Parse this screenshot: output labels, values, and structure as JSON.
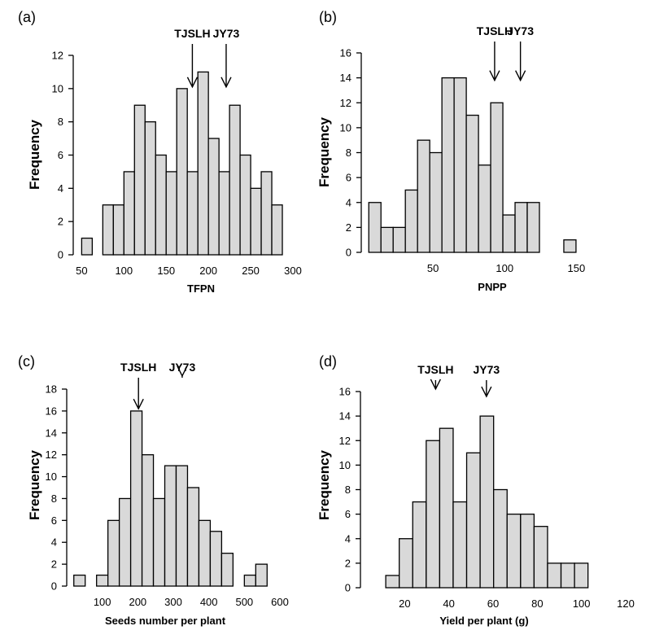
{
  "colors": {
    "bar_fill": "#d9d9d9",
    "stroke": "#000000",
    "background": "#ffffff"
  },
  "chart_data": [
    {
      "type": "bar",
      "panel_label": "(a)",
      "xlabel": "TFPN",
      "ylabel": "Frequency",
      "xlim": [
        40,
        300
      ],
      "ylim": [
        0,
        12
      ],
      "xticks": [
        50,
        100,
        150,
        200,
        250,
        300
      ],
      "yticks": [
        0,
        2,
        4,
        6,
        8,
        10,
        12
      ],
      "bin_width": 12.5,
      "bins": [
        {
          "x": 56.25,
          "value": 1
        },
        {
          "x": 81.25,
          "value": 3
        },
        {
          "x": 93.75,
          "value": 3
        },
        {
          "x": 106.25,
          "value": 5
        },
        {
          "x": 118.75,
          "value": 9
        },
        {
          "x": 131.25,
          "value": 8
        },
        {
          "x": 143.75,
          "value": 6
        },
        {
          "x": 156.25,
          "value": 5
        },
        {
          "x": 168.75,
          "value": 10
        },
        {
          "x": 181.25,
          "value": 5
        },
        {
          "x": 193.75,
          "value": 11
        },
        {
          "x": 206.25,
          "value": 7
        },
        {
          "x": 218.75,
          "value": 5
        },
        {
          "x": 231.25,
          "value": 9
        },
        {
          "x": 243.75,
          "value": 6
        },
        {
          "x": 256.25,
          "value": 4
        },
        {
          "x": 268.75,
          "value": 5
        },
        {
          "x": 281.25,
          "value": 3
        }
      ],
      "annotations": [
        {
          "label": "TJSLH",
          "x": 181,
          "y": 10.1
        },
        {
          "label": "JY73",
          "x": 221,
          "y": 10.1
        }
      ]
    },
    {
      "type": "bar",
      "panel_label": "(b)",
      "xlabel": "PNPP",
      "ylabel": "Frequency",
      "xlim": [
        0,
        160
      ],
      "ylim": [
        0,
        16
      ],
      "xticks": [
        50,
        100,
        150
      ],
      "yticks": [
        0,
        2,
        4,
        6,
        8,
        10,
        12,
        14,
        16
      ],
      "bin_width": 8.5,
      "bins": [
        {
          "x": 9.5,
          "value": 4
        },
        {
          "x": 18,
          "value": 2
        },
        {
          "x": 26.5,
          "value": 2
        },
        {
          "x": 35,
          "value": 5
        },
        {
          "x": 43.5,
          "value": 9
        },
        {
          "x": 52,
          "value": 8
        },
        {
          "x": 60.5,
          "value": 14
        },
        {
          "x": 69,
          "value": 14
        },
        {
          "x": 77.5,
          "value": 11
        },
        {
          "x": 86,
          "value": 7
        },
        {
          "x": 94.5,
          "value": 12
        },
        {
          "x": 103,
          "value": 3
        },
        {
          "x": 111.5,
          "value": 4
        },
        {
          "x": 120,
          "value": 4
        },
        {
          "x": 145.5,
          "value": 1
        }
      ],
      "annotations": [
        {
          "label": "TJSLH",
          "x": 93,
          "y": 13.8
        },
        {
          "label": "JY73",
          "x": 111,
          "y": 13.8
        }
      ]
    },
    {
      "type": "bar",
      "panel_label": "(c)",
      "xlabel": "Seeds number per plant",
      "ylabel": "Frequency",
      "xlim": [
        0,
        600
      ],
      "ylim": [
        0,
        18
      ],
      "xticks": [
        100,
        200,
        300,
        400,
        500,
        600
      ],
      "yticks": [
        0,
        2,
        4,
        6,
        8,
        10,
        12,
        14,
        16,
        18
      ],
      "bin_width": 32,
      "bins": [
        {
          "x": 36,
          "value": 1
        },
        {
          "x": 100,
          "value": 1
        },
        {
          "x": 132,
          "value": 6
        },
        {
          "x": 164,
          "value": 8
        },
        {
          "x": 196,
          "value": 16
        },
        {
          "x": 228,
          "value": 12
        },
        {
          "x": 260,
          "value": 8
        },
        {
          "x": 292,
          "value": 11
        },
        {
          "x": 324,
          "value": 11
        },
        {
          "x": 356,
          "value": 9
        },
        {
          "x": 388,
          "value": 6
        },
        {
          "x": 420,
          "value": 5
        },
        {
          "x": 452,
          "value": 3
        },
        {
          "x": 516,
          "value": 1
        },
        {
          "x": 548,
          "value": 2
        }
      ],
      "annotations": [
        {
          "label": "TJSLH",
          "x": 202,
          "y": 16.2
        },
        {
          "label": "JY73",
          "x": 325,
          "y": 19.2
        }
      ]
    },
    {
      "type": "bar",
      "panel_label": "(d)",
      "xlabel": "Yield  per plant (g)",
      "ylabel": "Frequency",
      "xlim": [
        0,
        120
      ],
      "ylim": [
        0,
        16
      ],
      "xticks": [
        20,
        40,
        60,
        80,
        100,
        120
      ],
      "yticks": [
        0,
        2,
        4,
        6,
        8,
        10,
        12,
        14,
        16
      ],
      "bin_width": 6.1,
      "bins": [
        {
          "x": 14.5,
          "value": 1
        },
        {
          "x": 20.6,
          "value": 4
        },
        {
          "x": 26.7,
          "value": 7
        },
        {
          "x": 32.8,
          "value": 12
        },
        {
          "x": 38.9,
          "value": 13
        },
        {
          "x": 45,
          "value": 7
        },
        {
          "x": 51.1,
          "value": 11
        },
        {
          "x": 57.2,
          "value": 14
        },
        {
          "x": 63.3,
          "value": 8
        },
        {
          "x": 69.4,
          "value": 6
        },
        {
          "x": 75.5,
          "value": 6
        },
        {
          "x": 81.6,
          "value": 5
        },
        {
          "x": 87.7,
          "value": 2
        },
        {
          "x": 93.8,
          "value": 2
        },
        {
          "x": 99.9,
          "value": 2
        }
      ],
      "annotations": [
        {
          "label": "TJSLH",
          "x": 34,
          "y": 16.2
        },
        {
          "label": "JY73",
          "x": 57,
          "y": 15.6
        }
      ]
    }
  ]
}
